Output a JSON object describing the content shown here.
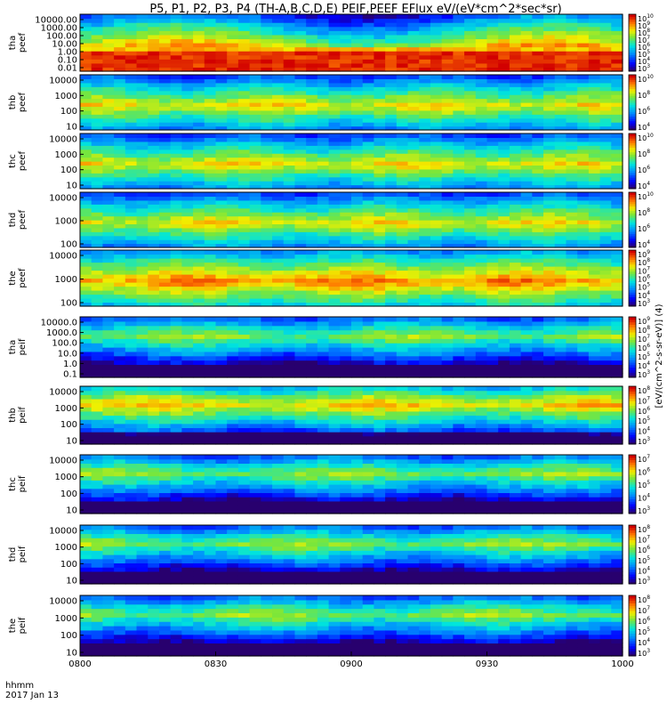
{
  "title": "P5, P1, P2, P3, P4 (TH-A,B,C,D,E) PEIF,PEEF EFlux eV/(eV*cm^2*sec*sr)",
  "colorbar_unit_label": "[eV/(cm^2-s-sr-eV)] (4)",
  "footer": {
    "time_label": "hhmm",
    "date_label": "2017 Jan 13"
  },
  "chart_data": [
    {
      "type": "heatmap",
      "name": "tha peef",
      "ylabel": "tha\npeef",
      "ylog": true,
      "yticks": [
        "10000.00",
        "1000.00",
        "100.00",
        "10.00",
        "1.00",
        "0.10",
        "0.01"
      ],
      "cbar_ticks": [
        "10^10",
        "10^9",
        "10^8",
        "10^7",
        "10^6",
        "10^5",
        "10^4",
        "10^3"
      ],
      "clim_log10": [
        3,
        10
      ]
    },
    {
      "type": "heatmap",
      "name": "thb peef",
      "ylabel": "thb\npeef",
      "ylog": true,
      "yticks": [
        "10000",
        "1000",
        "100",
        "10"
      ],
      "cbar_ticks": [
        "10^10",
        "10^8",
        "10^6",
        "10^4"
      ],
      "clim_log10": [
        3,
        10
      ]
    },
    {
      "type": "heatmap",
      "name": "thc peef",
      "ylabel": "thc\npeef",
      "ylog": true,
      "yticks": [
        "10000",
        "1000",
        "100",
        "10"
      ],
      "cbar_ticks": [
        "10^10",
        "10^8",
        "10^6",
        "10^4"
      ],
      "clim_log10": [
        3,
        10
      ]
    },
    {
      "type": "heatmap",
      "name": "thd peef",
      "ylabel": "thd\npeef",
      "ylog": true,
      "yticks": [
        "10000",
        "1000",
        "100"
      ],
      "cbar_ticks": [
        "10^10",
        "10^8",
        "10^6",
        "10^4"
      ],
      "clim_log10": [
        3,
        10
      ]
    },
    {
      "type": "heatmap",
      "name": "the peef",
      "ylabel": "the\npeef",
      "ylog": true,
      "yticks": [
        "10000",
        "1000",
        "100"
      ],
      "cbar_ticks": [
        "10^9",
        "10^8",
        "10^7",
        "10^6",
        "10^5",
        "10^4",
        "10^3"
      ],
      "clim_log10": [
        3,
        9
      ]
    },
    {
      "type": "heatmap",
      "name": "tha peif",
      "ylabel": "tha\npeif",
      "ylog": true,
      "yticks": [
        "10000.0",
        "1000.0",
        "100.0",
        "10.0",
        "1.0",
        "0.1"
      ],
      "cbar_ticks": [
        "10^9",
        "10^8",
        "10^7",
        "10^6",
        "10^5",
        "10^4",
        "10^3"
      ],
      "clim_log10": [
        3,
        9
      ]
    },
    {
      "type": "heatmap",
      "name": "thb peif",
      "ylabel": "thb\npeif",
      "ylog": true,
      "yticks": [
        "10000",
        "1000",
        "100",
        "10"
      ],
      "cbar_ticks": [
        "10^8",
        "10^7",
        "10^6",
        "10^5",
        "10^4",
        "10^3"
      ],
      "clim_log10": [
        3,
        8
      ]
    },
    {
      "type": "heatmap",
      "name": "thc peif",
      "ylabel": "thc\npeif",
      "ylog": true,
      "yticks": [
        "10000",
        "1000",
        "100",
        "10"
      ],
      "cbar_ticks": [
        "10^7",
        "10^6",
        "10^5",
        "10^4",
        "10^3"
      ],
      "clim_log10": [
        3,
        7
      ]
    },
    {
      "type": "heatmap",
      "name": "thd peif",
      "ylabel": "thd\npeif",
      "ylog": true,
      "yticks": [
        "10000",
        "1000",
        "100",
        "10"
      ],
      "cbar_ticks": [
        "10^8",
        "10^7",
        "10^6",
        "10^5",
        "10^4",
        "10^3"
      ],
      "clim_log10": [
        3,
        8
      ]
    },
    {
      "type": "heatmap",
      "name": "the peif",
      "ylabel": "the\npeif",
      "ylog": true,
      "yticks": [
        "10000",
        "1000",
        "100",
        "10"
      ],
      "cbar_ticks": [
        "10^8",
        "10^7",
        "10^6",
        "10^5",
        "10^4",
        "10^3"
      ],
      "clim_log10": [
        3,
        8
      ]
    }
  ],
  "x_axis": {
    "ticks": [
      "0800",
      "0830",
      "0900",
      "0930",
      "1000"
    ],
    "range": [
      "0800",
      "1000"
    ]
  }
}
